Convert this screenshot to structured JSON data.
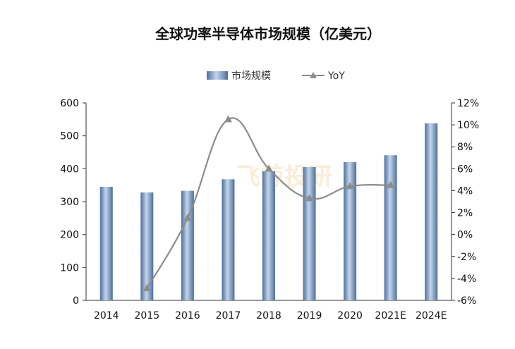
{
  "chart_data": {
    "type": "bar",
    "title": "全球功率半导体市场规模（亿美元）",
    "categories": [
      "2014",
      "2015",
      "2016",
      "2017",
      "2018",
      "2019",
      "2020",
      "2021E",
      "2024E"
    ],
    "series": [
      {
        "name": "市场规模",
        "type": "bar",
        "axis": "left",
        "values": [
          345,
          328,
          333,
          368,
          392,
          405,
          420,
          441,
          538
        ]
      },
      {
        "name": "YoY",
        "type": "line",
        "axis": "right",
        "unit": "%",
        "values": [
          null,
          -4.9,
          1.5,
          10.5,
          6.0,
          3.3,
          4.4,
          4.5,
          null
        ]
      }
    ],
    "y_left": {
      "min": 0,
      "max": 600,
      "ticks": [
        "0",
        "100",
        "200",
        "300",
        "400",
        "500",
        "600"
      ]
    },
    "y_right": {
      "min": -6,
      "max": 12,
      "ticks": [
        "-6%",
        "-4%",
        "-2%",
        "0%",
        "2%",
        "4%",
        "6%",
        "8%",
        "10%",
        "12%"
      ]
    },
    "legend": {
      "position": "top",
      "items": [
        "市场规模",
        "YoY"
      ]
    },
    "watermark": "飞鲸投研",
    "colors": {
      "bar": "#5b7fae",
      "bar_light": "#b9cde6",
      "line": "#8c8c8c"
    }
  }
}
